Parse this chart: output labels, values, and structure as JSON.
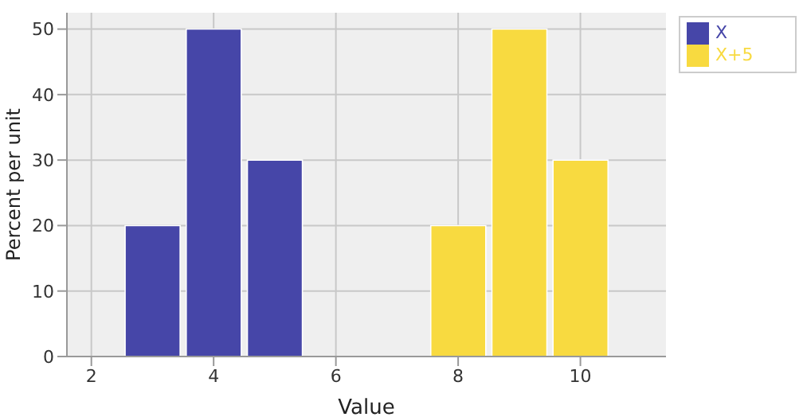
{
  "chart_data": {
    "type": "histogram",
    "xlabel": "Value",
    "ylabel": "Percent per unit",
    "xlim": [
      1.6,
      11.4
    ],
    "xticks": [
      2,
      4,
      6,
      8,
      10
    ],
    "ylim": [
      0,
      52.5
    ],
    "yticks": [
      0,
      10,
      20,
      30,
      40,
      50
    ],
    "grid": true,
    "legend": "top right",
    "bins": [
      2.5,
      3.5,
      4.5,
      5.5,
      6.5,
      7.5,
      8.5,
      9.5,
      10.5
    ],
    "series": [
      {
        "name": "X",
        "color": "#4646a8",
        "values": [
          20,
          50,
          30,
          null,
          null,
          null,
          null,
          null
        ]
      },
      {
        "name": "X+5",
        "color": "#f8da40",
        "values": [
          null,
          null,
          null,
          null,
          null,
          20,
          50,
          30
        ]
      }
    ]
  }
}
